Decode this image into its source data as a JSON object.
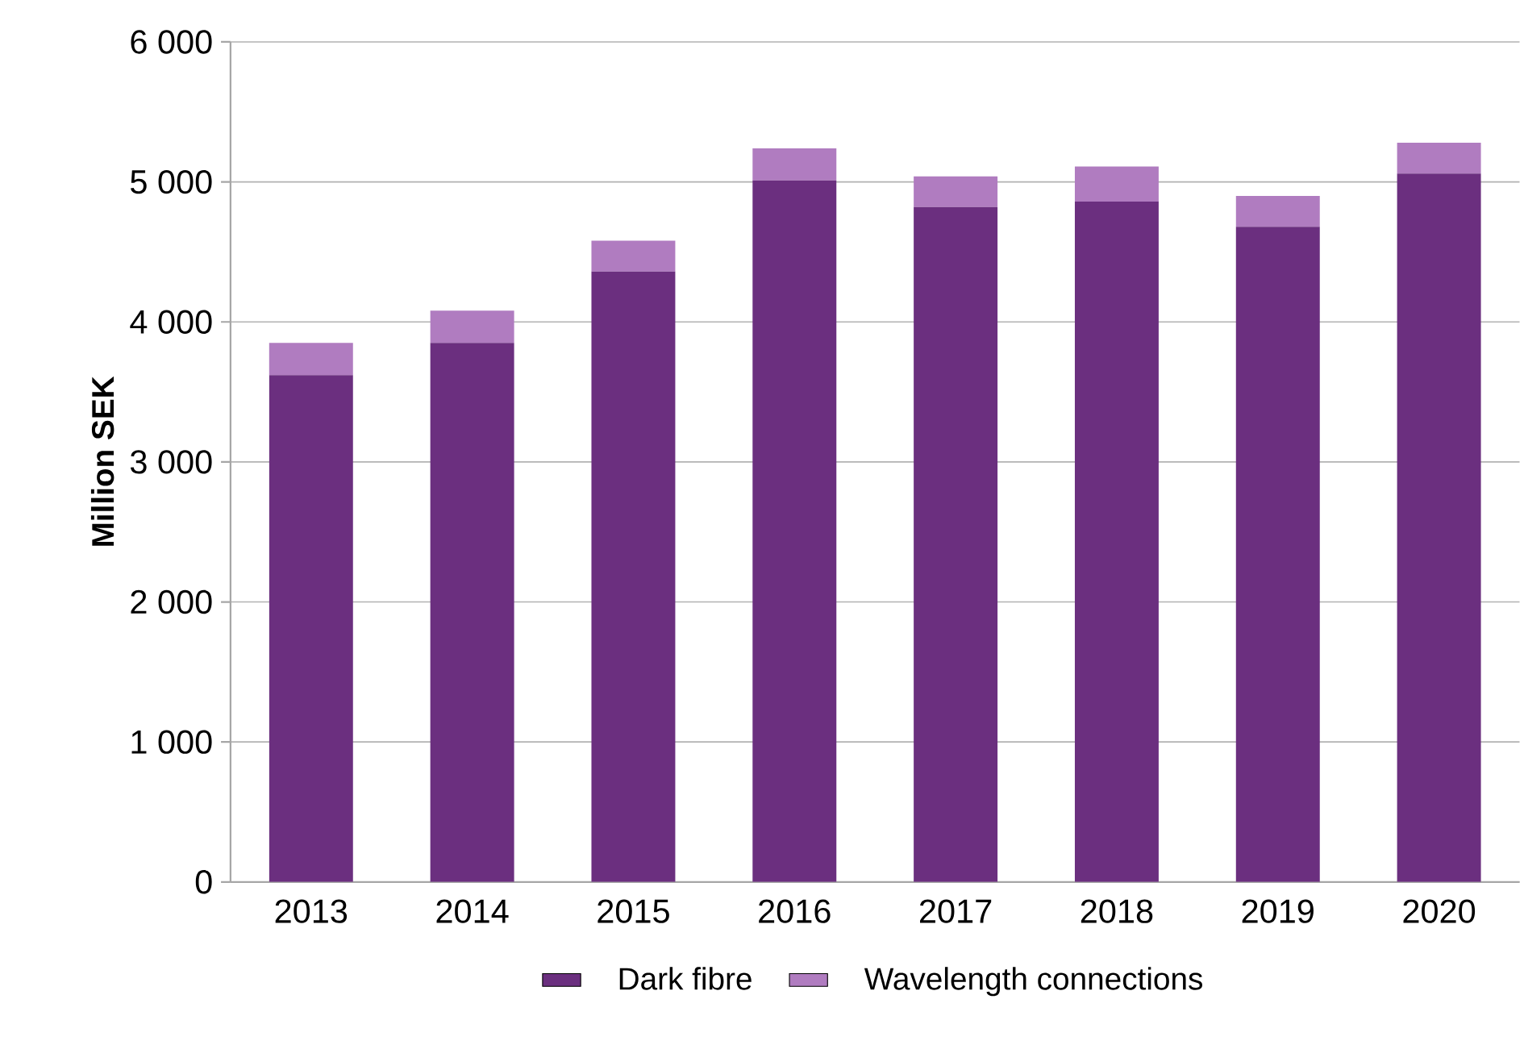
{
  "chart_data": {
    "type": "bar",
    "stacked": true,
    "ylabel": "Million SEK",
    "categories": [
      "2013",
      "2014",
      "2015",
      "2016",
      "2017",
      "2018",
      "2019",
      "2020"
    ],
    "series": [
      {
        "name": "Dark fibre",
        "color": "#6b2f7f",
        "values": [
          3620,
          3850,
          4360,
          5010,
          4820,
          4860,
          4680,
          5060
        ]
      },
      {
        "name": "Wavelength connections",
        "color": "#b07cc0",
        "values": [
          230,
          230,
          220,
          230,
          220,
          250,
          220,
          220
        ]
      }
    ],
    "ylim": [
      0,
      6000
    ],
    "yticks": [
      0,
      {
        "value": 1000,
        "label": "1 000"
      },
      {
        "value": 2000,
        "label": "2 000"
      },
      {
        "value": 3000,
        "label": "3 000"
      },
      {
        "value": 4000,
        "label": "4 000"
      },
      {
        "value": 5000,
        "label": "5 000"
      },
      {
        "value": 6000,
        "label": "6 000"
      }
    ],
    "grid": "y",
    "legend": "bottom"
  }
}
